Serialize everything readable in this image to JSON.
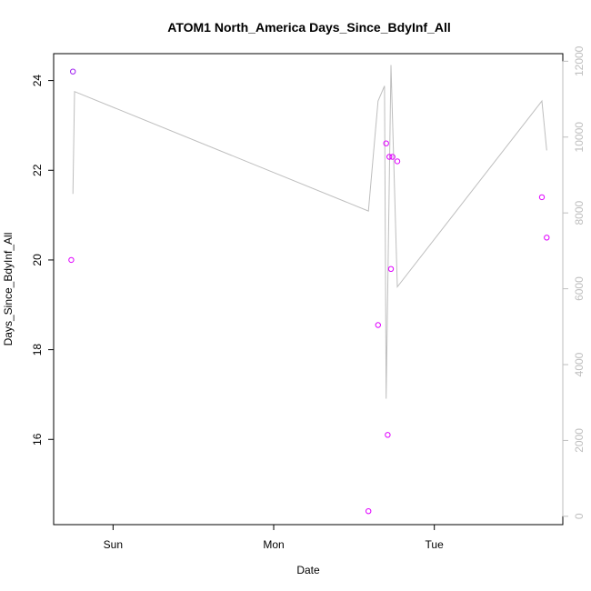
{
  "chart_data": {
    "type": "scatter",
    "title": "ATOM1 North_America Days_Since_BdyInf_All",
    "xlabel": "Date",
    "ylabel": "Days_Since_BdyInf_All",
    "x_ticks": [
      "Sun",
      "Mon",
      "Tue"
    ],
    "x_range_days": [
      -0.37,
      2.8
    ],
    "ylim": [
      14.1,
      24.6
    ],
    "y_ticks": [
      16,
      18,
      20,
      22,
      24
    ],
    "y2_ticks": [
      0,
      2000,
      4000,
      6000,
      8000,
      10000,
      12000
    ],
    "y2lim": [
      -220,
      12200
    ],
    "colors": {
      "line": "#bebebe",
      "right_axis": "#bebebe",
      "points": [
        "#a020f0",
        "#e000ff"
      ]
    },
    "series": [
      {
        "kind": "points",
        "x": [
          -0.26,
          -0.25,
          1.59,
          1.65,
          1.7,
          1.71,
          1.72,
          1.73,
          1.74,
          1.77,
          2.67,
          2.7
        ],
        "y": [
          20.0,
          24.2,
          14.4,
          18.55,
          22.6,
          16.1,
          22.3,
          19.8,
          22.3,
          22.2,
          21.4,
          20.5
        ]
      },
      {
        "kind": "line",
        "x": [
          -0.25,
          -0.24,
          1.59,
          1.65,
          1.69,
          1.7,
          1.73,
          1.77,
          2.67,
          2.7
        ],
        "y": [
          8500,
          11200,
          8050,
          10950,
          11350,
          3100,
          11900,
          6050,
          10950,
          9650
        ]
      }
    ]
  }
}
